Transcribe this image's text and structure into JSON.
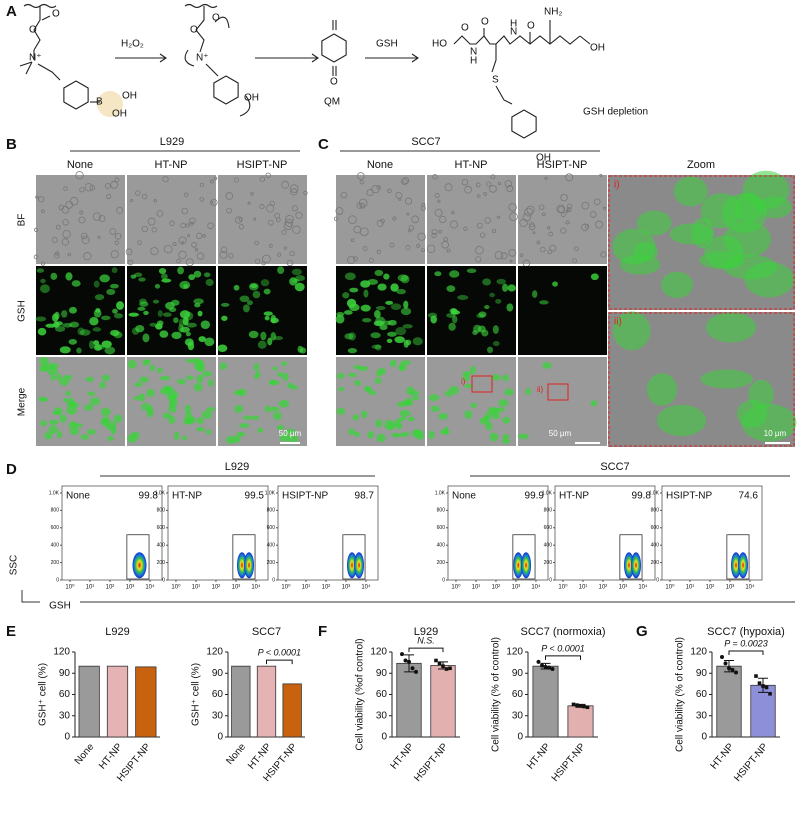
{
  "panel_a": {
    "label": "A",
    "reagents": [
      "H₂O₂",
      "GSH"
    ],
    "product": "QM",
    "note": "GSH depletion",
    "atoms": [
      "O",
      "O",
      "N⁺",
      "B",
      "OH",
      "OH",
      "O",
      "O",
      "N⁺",
      "OH",
      "O",
      "HO",
      "O",
      "N",
      "H",
      "O",
      "N",
      "H",
      "NH₂",
      "O",
      "OH",
      "S",
      "OH"
    ]
  },
  "panel_b": {
    "label": "B",
    "title": "L929",
    "columns": [
      "None",
      "HT-NP",
      "HSIPT-NP"
    ],
    "rows": [
      "BF",
      "GSH",
      "Merge"
    ],
    "scale": "50 μm"
  },
  "panel_c": {
    "label": "C",
    "title": "SCC7",
    "columns": [
      "None",
      "HT-NP",
      "HSIPT-NP"
    ],
    "zoom_title": "Zoom",
    "insets": [
      "i)",
      "ii)"
    ],
    "scale": "50 μm",
    "zoom_scale": "10 μm"
  },
  "panel_d": {
    "label": "D",
    "xlabel": "GSH",
    "ylabel": "SSC",
    "yticks": [
      {
        "value": 1000,
        "label": "1.0K"
      },
      800,
      600,
      400,
      200,
      0
    ],
    "ylim": [
      0,
      1080
    ],
    "xticks": [
      {
        "value": 1,
        "label": "10⁰"
      },
      {
        "value": 10,
        "label": "10¹"
      },
      {
        "value": 100,
        "label": "10²"
      },
      {
        "value": 1000,
        "label": "10³"
      },
      {
        "value": 10000,
        "label": "10⁴"
      }
    ],
    "xlim": [
      0.4,
      40000
    ],
    "log_x": true,
    "groups": [
      {
        "title": "L929",
        "plots": [
          {
            "name": "None",
            "value": 99.8
          },
          {
            "name": "HT-NP",
            "value": 99.5
          },
          {
            "name": "HSIPT-NP",
            "value": 98.7
          }
        ]
      },
      {
        "title": "SCC7",
        "plots": [
          {
            "name": "None",
            "value": 99.9
          },
          {
            "name": "HT-NP",
            "value": 99.8
          },
          {
            "name": "HSIPT-NP",
            "value": 74.6
          }
        ]
      }
    ]
  },
  "panel_e": {
    "label": "E",
    "chart_data": [
      {
        "type": "bar",
        "title": "L929",
        "ylabel": "GSH⁺ cell (%)",
        "categories": [
          "None",
          "HT-NP",
          "HSIPT-NP"
        ],
        "values": [
          100,
          100,
          99
        ],
        "colors": [
          "#9a9a9a",
          "#e6b3b5",
          "#c8620e"
        ],
        "ylim": [
          0,
          120
        ],
        "yticks": [
          0,
          30,
          60,
          90,
          120
        ]
      },
      {
        "type": "bar",
        "title": "SCC7",
        "ylabel": "GSH⁺ cell (%)",
        "categories": [
          "None",
          "HT-NP",
          "HSIPT-NP"
        ],
        "values": [
          100,
          100,
          75
        ],
        "colors": [
          "#9a9a9a",
          "#e6b3b5",
          "#c8620e"
        ],
        "ylim": [
          0,
          120
        ],
        "yticks": [
          0,
          30,
          60,
          90,
          120
        ],
        "annotation": "P < 0.0001"
      }
    ]
  },
  "panel_f": {
    "label": "F",
    "chart_data": [
      {
        "type": "bar",
        "title": "L929",
        "ylabel": "Cell viability (%of control)",
        "categories": [
          "HT-NP",
          "HSIPT-NP"
        ],
        "values": [
          104,
          101
        ],
        "errors": [
          12,
          5
        ],
        "points": [
          [
            117,
            108,
            106,
            97,
            92
          ],
          [
            108,
            104,
            100,
            96,
            97
          ]
        ],
        "colors": [
          "#9a9a9a",
          "#e3b0b0"
        ],
        "ylim": [
          0,
          120
        ],
        "yticks": [
          0,
          30,
          60,
          90,
          120
        ],
        "annotation": "N.S."
      },
      {
        "type": "bar",
        "title": "SCC7 (normoxia)",
        "ylabel": "Cell viability (% of control)",
        "categories": [
          "HT-NP",
          "HSIPT-NP"
        ],
        "values": [
          100,
          44
        ],
        "errors": [
          4,
          2
        ],
        "points": [
          [
            106,
            101,
            99,
            98,
            96
          ],
          [
            46,
            45,
            44,
            43,
            42
          ]
        ],
        "colors": [
          "#9a9a9a",
          "#e3b0b0"
        ],
        "ylim": [
          0,
          120
        ],
        "yticks": [
          0,
          30,
          60,
          90,
          120
        ],
        "annotation": "P < 0.0001"
      }
    ]
  },
  "panel_g": {
    "label": "G",
    "chart_data": [
      {
        "type": "bar",
        "title": "SCC7 (hypoxia)",
        "ylabel": "Cell viability (% of control)",
        "categories": [
          "HT-NP",
          "HSIPT-NP"
        ],
        "values": [
          100,
          73
        ],
        "errors": [
          8,
          10
        ],
        "points": [
          [
            113,
            104,
            97,
            95,
            91
          ],
          [
            86,
            76,
            72,
            70,
            61
          ]
        ],
        "colors": [
          "#9a9a9a",
          "#8e8fd9"
        ],
        "ylim": [
          0,
          120
        ],
        "yticks": [
          0,
          30,
          60,
          90,
          120
        ],
        "annotation": "P = 0.0023"
      }
    ]
  }
}
